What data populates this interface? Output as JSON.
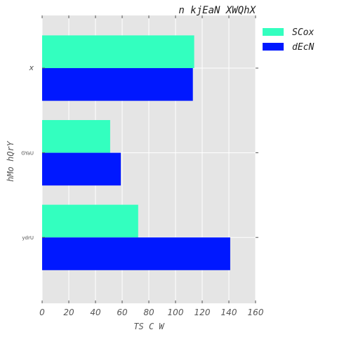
{
  "chart_data": {
    "type": "bar",
    "orientation": "horizontal",
    "title": "n  kjEaN XWQhX",
    "xlabel": "TS C  W",
    "ylabel": "hMo hQrY",
    "categories": [
      "x",
      "GYaU",
      "ydrU"
    ],
    "series": [
      {
        "name": "SCox",
        "values": [
          114,
          51,
          72
        ],
        "color": "#33ffbf"
      },
      {
        "name": "dEcN",
        "values": [
          113,
          59,
          141
        ],
        "color": "#0018ff"
      }
    ],
    "xlim": [
      0,
      160
    ],
    "xticks": [
      0,
      20,
      40,
      60,
      80,
      100,
      120,
      140,
      160
    ],
    "grid": true,
    "background": "#e5e5e5",
    "legend_position": "outside-top-right"
  }
}
